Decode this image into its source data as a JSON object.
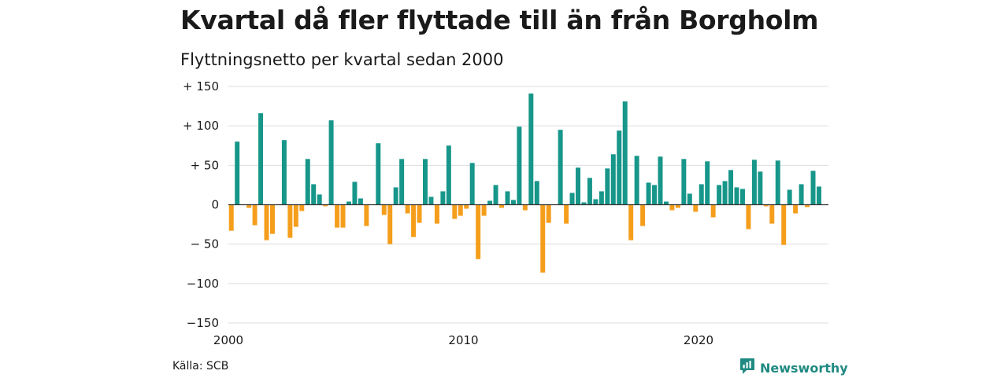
{
  "title": "Kvartal då fler flyttade till än från Borgholm",
  "subtitle": "Flyttningsnetto per kvartal sedan 2000",
  "source": "Källa: SCB",
  "brand": {
    "name": "Newsworthy",
    "icon": "newsworthy-logo-icon"
  },
  "colors": {
    "positive": "#17968a",
    "negative": "#f59e1c",
    "grid": "#dddddd",
    "zero": "#333333"
  },
  "chart_data": {
    "type": "bar",
    "start": "2000 Q1",
    "frequency": "quarterly",
    "ylim": [
      -150,
      150
    ],
    "y_ticks": [
      150,
      100,
      50,
      0,
      -50,
      -100,
      -150
    ],
    "y_tick_labels": [
      "+ 150",
      "+ 100",
      "+  50",
      "0",
      "− 50",
      "−100",
      "−150"
    ],
    "x_ticks": [
      2000,
      2010,
      2020
    ],
    "x_tick_labels": [
      "2000",
      "2010",
      "2020"
    ],
    "grid": true,
    "values": [
      -33,
      80,
      0,
      -4,
      -26,
      116,
      -45,
      -37,
      0,
      82,
      -42,
      -28,
      -8,
      58,
      26,
      13,
      -2,
      107,
      -29,
      -29,
      4,
      29,
      8,
      -27,
      0,
      78,
      -13,
      -50,
      22,
      58,
      -11,
      -41,
      -23,
      58,
      10,
      -24,
      17,
      75,
      -18,
      -14,
      -5,
      53,
      -69,
      -14,
      5,
      25,
      -4,
      17,
      6,
      99,
      -7,
      141,
      30,
      -86,
      -23,
      0,
      95,
      -24,
      15,
      47,
      3,
      34,
      7,
      17,
      46,
      64,
      94,
      131,
      -45,
      62,
      -27,
      28,
      25,
      61,
      4,
      -7,
      -4,
      58,
      14,
      -9,
      26,
      55,
      -16,
      25,
      30,
      44,
      22,
      20,
      -31,
      57,
      42,
      -2,
      -24,
      56,
      -51,
      19,
      -11,
      26,
      -3,
      43,
      23
    ]
  }
}
